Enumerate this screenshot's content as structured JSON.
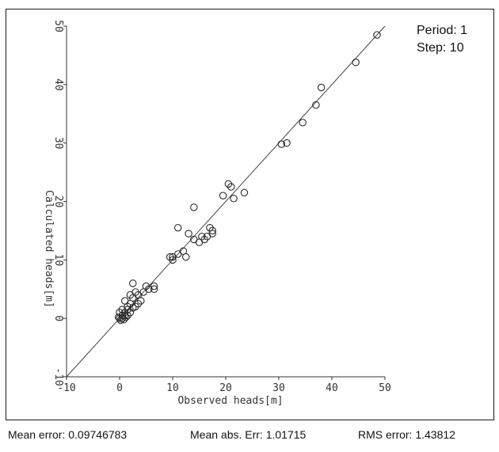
{
  "chart_data": {
    "type": "scatter",
    "title": "",
    "xlabel": "Observed heads[m]",
    "ylabel": "Calculated heads[m]",
    "xlim": [
      -10,
      50
    ],
    "ylim": [
      -10,
      50
    ],
    "x_ticks": [
      "-10",
      "0",
      "10",
      "20",
      "30",
      "40",
      "50"
    ],
    "y_ticks": [
      "-10",
      "0",
      "10",
      "20",
      "30",
      "40",
      "50"
    ],
    "grid": false,
    "reference_line": "y = x",
    "marker": "open-circle",
    "annotations": {
      "period": "Period: 1",
      "step": "Step: 10"
    },
    "points": [
      [
        48.5,
        48.5
      ],
      [
        44.5,
        43.8
      ],
      [
        38,
        39.5
      ],
      [
        37,
        36.5
      ],
      [
        34.5,
        33.5
      ],
      [
        31.5,
        30
      ],
      [
        30.5,
        29.8
      ],
      [
        23.5,
        21.5
      ],
      [
        21.5,
        20.5
      ],
      [
        21,
        22.5
      ],
      [
        20.5,
        23
      ],
      [
        19.5,
        21
      ],
      [
        17.5,
        15
      ],
      [
        17.5,
        14.5
      ],
      [
        17,
        15.5
      ],
      [
        16.5,
        14
      ],
      [
        16,
        13.5
      ],
      [
        15.5,
        14
      ],
      [
        15,
        13
      ],
      [
        14,
        13.5
      ],
      [
        13,
        14.5
      ],
      [
        14,
        19
      ],
      [
        11,
        15.5
      ],
      [
        12,
        11.5
      ],
      [
        12.5,
        10.5
      ],
      [
        11,
        11
      ],
      [
        10,
        10.5
      ],
      [
        9.5,
        10.5
      ],
      [
        10,
        10
      ],
      [
        6.5,
        5.5
      ],
      [
        6.5,
        5
      ],
      [
        5.5,
        5
      ],
      [
        5,
        5.5
      ],
      [
        4.5,
        4.5
      ],
      [
        3.5,
        4
      ],
      [
        3,
        4.5
      ],
      [
        2.5,
        6
      ],
      [
        2.5,
        3.5
      ],
      [
        2,
        4
      ],
      [
        2,
        2.5
      ],
      [
        1.5,
        2
      ],
      [
        1,
        3
      ],
      [
        1.5,
        1.5
      ],
      [
        1,
        1
      ],
      [
        1,
        0.5
      ],
      [
        0.5,
        0.5
      ],
      [
        0.5,
        0
      ],
      [
        0,
        0
      ],
      [
        0,
        1
      ],
      [
        0.5,
        1.5
      ],
      [
        1.5,
        0.5
      ],
      [
        2,
        1
      ],
      [
        3,
        2
      ],
      [
        3.5,
        2.5
      ],
      [
        0.2,
        -0.3
      ],
      [
        -0.2,
        0.2
      ],
      [
        0.8,
        -0.2
      ],
      [
        1.2,
        0.2
      ],
      [
        2.5,
        1.8
      ],
      [
        4,
        3
      ]
    ]
  },
  "stats": {
    "mean_error": "Mean error: 0.09746783",
    "mean_abs_err": "Mean abs. Err: 1.01715",
    "rms_error": "RMS error: 1.43812"
  }
}
